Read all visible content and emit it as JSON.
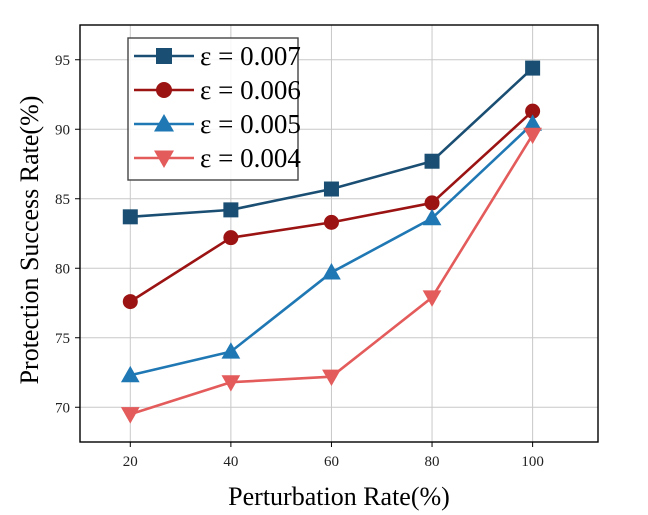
{
  "chart_data": {
    "type": "line",
    "xlabel": "Perturbation Rate(%)",
    "ylabel": "Protection Success Rate(%)",
    "x": [
      20,
      40,
      60,
      80,
      100
    ],
    "xlim": [
      10,
      113
    ],
    "ylim": [
      67.5,
      97.5
    ],
    "xticks": [
      20,
      40,
      60,
      80,
      100
    ],
    "yticks": [
      70,
      75,
      80,
      85,
      90,
      95
    ],
    "grid": true,
    "legend_position": "top-left",
    "series": [
      {
        "name": "ε = 0.007",
        "color": "#1a4e72",
        "marker": "square",
        "values": [
          83.7,
          84.2,
          85.7,
          87.7,
          94.4
        ]
      },
      {
        "name": "ε = 0.006",
        "color": "#9b1313",
        "marker": "circle",
        "values": [
          77.6,
          82.2,
          83.3,
          84.7,
          91.3
        ]
      },
      {
        "name": "ε = 0.005",
        "color": "#1f78b4",
        "marker": "triangle-up",
        "values": [
          72.3,
          74.0,
          79.7,
          83.6,
          90.4
        ]
      },
      {
        "name": "ε = 0.004",
        "color": "#e45b5b",
        "marker": "triangle-down",
        "values": [
          69.5,
          71.8,
          72.2,
          77.9,
          89.6
        ]
      }
    ]
  }
}
